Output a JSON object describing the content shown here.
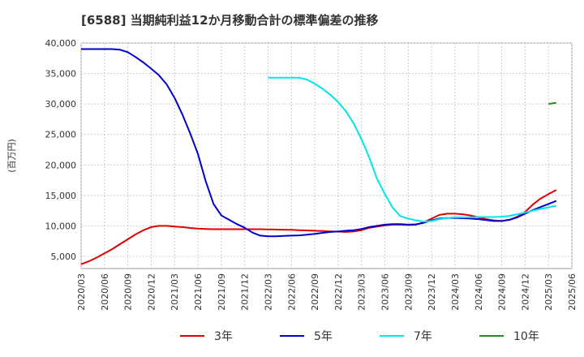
{
  "chart_data": {
    "type": "line",
    "title": "[6588]  当期純利益12か月移動合計の標準偏差の推移",
    "ylabel": "(百万円)",
    "xlabel": "",
    "ylim": [
      3000,
      40000
    ],
    "yticks": [
      5000,
      10000,
      15000,
      20000,
      25000,
      30000,
      35000,
      40000
    ],
    "ytick_labels": [
      "5,000",
      "10,000",
      "15,000",
      "20,000",
      "25,000",
      "30,000",
      "35,000",
      "40,000"
    ],
    "xlim": [
      "2020/03",
      "2025/06"
    ],
    "xtick_labels": [
      "2020/03",
      "2020/06",
      "2020/09",
      "2020/12",
      "2021/03",
      "2021/06",
      "2021/09",
      "2021/12",
      "2022/03",
      "2022/06",
      "2022/09",
      "2022/12",
      "2023/03",
      "2023/06",
      "2023/09",
      "2023/12",
      "2024/03",
      "2024/06",
      "2024/09",
      "2024/12",
      "2025/03",
      "2025/06"
    ],
    "grid": true,
    "legend_position": "bottom",
    "series": [
      {
        "name": "3年",
        "color": "#e00000",
        "points": [
          [
            "2020/03",
            3700
          ],
          [
            "2020/04",
            4200
          ],
          [
            "2020/05",
            4800
          ],
          [
            "2020/06",
            5500
          ],
          [
            "2020/07",
            6200
          ],
          [
            "2020/08",
            7000
          ],
          [
            "2020/09",
            7800
          ],
          [
            "2020/10",
            8600
          ],
          [
            "2020/11",
            9300
          ],
          [
            "2020/12",
            9800
          ],
          [
            "2021/01",
            10000
          ],
          [
            "2021/02",
            10000
          ],
          [
            "2021/03",
            9900
          ],
          [
            "2021/04",
            9800
          ],
          [
            "2021/05",
            9650
          ],
          [
            "2021/06",
            9550
          ],
          [
            "2021/07",
            9500
          ],
          [
            "2021/08",
            9450
          ],
          [
            "2021/09",
            9450
          ],
          [
            "2021/10",
            9450
          ],
          [
            "2021/11",
            9450
          ],
          [
            "2021/12",
            9450
          ],
          [
            "2022/01",
            9450
          ],
          [
            "2022/02",
            9450
          ],
          [
            "2022/03",
            9420
          ],
          [
            "2022/04",
            9400
          ],
          [
            "2022/05",
            9380
          ],
          [
            "2022/06",
            9350
          ],
          [
            "2022/07",
            9300
          ],
          [
            "2022/08",
            9250
          ],
          [
            "2022/09",
            9200
          ],
          [
            "2022/10",
            9150
          ],
          [
            "2022/11",
            9100
          ],
          [
            "2022/12",
            9050
          ],
          [
            "2023/01",
            9000
          ],
          [
            "2023/02",
            9100
          ],
          [
            "2023/03",
            9300
          ],
          [
            "2023/04",
            9700
          ],
          [
            "2023/05",
            9900
          ],
          [
            "2023/06",
            10100
          ],
          [
            "2023/07",
            10200
          ],
          [
            "2023/08",
            10200
          ],
          [
            "2023/09",
            10150
          ],
          [
            "2023/10",
            10200
          ],
          [
            "2023/11",
            10600
          ],
          [
            "2023/12",
            11200
          ],
          [
            "2024/01",
            11800
          ],
          [
            "2024/02",
            12000
          ],
          [
            "2024/03",
            12000
          ],
          [
            "2024/04",
            11900
          ],
          [
            "2024/05",
            11700
          ],
          [
            "2024/06",
            11400
          ],
          [
            "2024/07",
            11100
          ],
          [
            "2024/08",
            10900
          ],
          [
            "2024/09",
            10800
          ],
          [
            "2024/10",
            11000
          ],
          [
            "2024/11",
            11500
          ],
          [
            "2024/12",
            12300
          ],
          [
            "2025/01",
            13500
          ],
          [
            "2025/02",
            14500
          ],
          [
            "2025/03",
            15200
          ],
          [
            "2025/04",
            15900
          ]
        ]
      },
      {
        "name": "5年",
        "color": "#0000cc",
        "points": [
          [
            "2020/03",
            39000
          ],
          [
            "2020/04",
            39000
          ],
          [
            "2020/05",
            39000
          ],
          [
            "2020/06",
            39000
          ],
          [
            "2020/07",
            39000
          ],
          [
            "2020/08",
            38900
          ],
          [
            "2020/09",
            38500
          ],
          [
            "2020/10",
            37700
          ],
          [
            "2020/11",
            36800
          ],
          [
            "2020/12",
            35800
          ],
          [
            "2021/01",
            34700
          ],
          [
            "2021/02",
            33200
          ],
          [
            "2021/03",
            31000
          ],
          [
            "2021/04",
            28300
          ],
          [
            "2021/05",
            25200
          ],
          [
            "2021/06",
            21800
          ],
          [
            "2021/07",
            17300
          ],
          [
            "2021/08",
            13600
          ],
          [
            "2021/09",
            11700
          ],
          [
            "2021/10",
            11000
          ],
          [
            "2021/11",
            10300
          ],
          [
            "2021/12",
            9700
          ],
          [
            "2022/01",
            8900
          ],
          [
            "2022/02",
            8400
          ],
          [
            "2022/03",
            8300
          ],
          [
            "2022/04",
            8300
          ],
          [
            "2022/05",
            8350
          ],
          [
            "2022/06",
            8400
          ],
          [
            "2022/07",
            8450
          ],
          [
            "2022/08",
            8550
          ],
          [
            "2022/09",
            8700
          ],
          [
            "2022/10",
            8850
          ],
          [
            "2022/11",
            9000
          ],
          [
            "2022/12",
            9100
          ],
          [
            "2023/01",
            9200
          ],
          [
            "2023/02",
            9300
          ],
          [
            "2023/03",
            9500
          ],
          [
            "2023/04",
            9800
          ],
          [
            "2023/05",
            10000
          ],
          [
            "2023/06",
            10200
          ],
          [
            "2023/07",
            10300
          ],
          [
            "2023/08",
            10300
          ],
          [
            "2023/09",
            10200
          ],
          [
            "2023/10",
            10250
          ],
          [
            "2023/11",
            10500
          ],
          [
            "2023/12",
            10900
          ],
          [
            "2024/01",
            11200
          ],
          [
            "2024/02",
            11300
          ],
          [
            "2024/03",
            11300
          ],
          [
            "2024/04",
            11250
          ],
          [
            "2024/05",
            11200
          ],
          [
            "2024/06",
            11100
          ],
          [
            "2024/07",
            10950
          ],
          [
            "2024/08",
            10800
          ],
          [
            "2024/09",
            10800
          ],
          [
            "2024/10",
            11000
          ],
          [
            "2024/11",
            11400
          ],
          [
            "2024/12",
            12000
          ],
          [
            "2025/01",
            12600
          ],
          [
            "2025/02",
            13100
          ],
          [
            "2025/03",
            13600
          ],
          [
            "2025/04",
            14100
          ]
        ]
      },
      {
        "name": "7年",
        "color": "#00e5ee",
        "points": [
          [
            "2022/03",
            34300
          ],
          [
            "2022/04",
            34300
          ],
          [
            "2022/05",
            34300
          ],
          [
            "2022/06",
            34300
          ],
          [
            "2022/07",
            34300
          ],
          [
            "2022/08",
            34000
          ],
          [
            "2022/09",
            33300
          ],
          [
            "2022/10",
            32500
          ],
          [
            "2022/11",
            31500
          ],
          [
            "2022/12",
            30300
          ],
          [
            "2023/01",
            28800
          ],
          [
            "2023/02",
            26800
          ],
          [
            "2023/03",
            24200
          ],
          [
            "2023/04",
            21200
          ],
          [
            "2023/05",
            17700
          ],
          [
            "2023/06",
            15200
          ],
          [
            "2023/07",
            13000
          ],
          [
            "2023/08",
            11600
          ],
          [
            "2023/09",
            11200
          ],
          [
            "2023/10",
            10900
          ],
          [
            "2023/11",
            10700
          ],
          [
            "2023/12",
            10800
          ],
          [
            "2024/01",
            11100
          ],
          [
            "2024/02",
            11300
          ],
          [
            "2024/03",
            11400
          ],
          [
            "2024/04",
            11400
          ],
          [
            "2024/05",
            11400
          ],
          [
            "2024/06",
            11450
          ],
          [
            "2024/07",
            11450
          ],
          [
            "2024/08",
            11450
          ],
          [
            "2024/09",
            11500
          ],
          [
            "2024/10",
            11650
          ],
          [
            "2024/11",
            11900
          ],
          [
            "2024/12",
            12200
          ],
          [
            "2025/01",
            12500
          ],
          [
            "2025/02",
            12800
          ],
          [
            "2025/03",
            13050
          ],
          [
            "2025/04",
            13300
          ]
        ]
      },
      {
        "name": "10年",
        "color": "#228b22",
        "points": [
          [
            "2025/03",
            30000
          ],
          [
            "2025/04",
            30200
          ]
        ]
      }
    ]
  }
}
